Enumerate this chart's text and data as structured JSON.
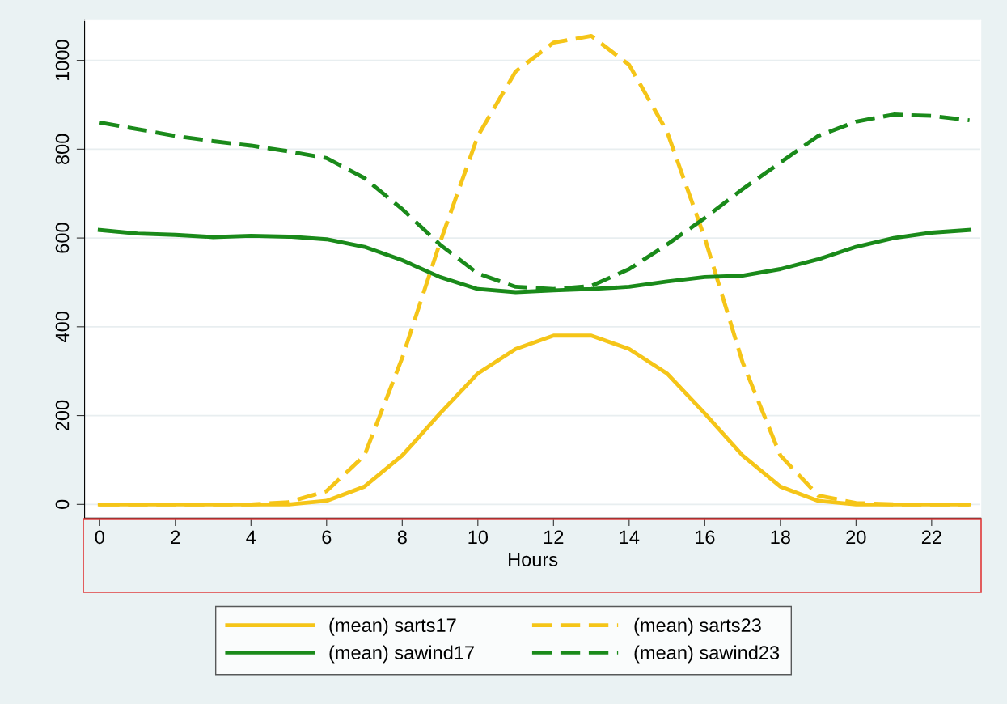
{
  "chart_data": {
    "type": "line",
    "xlabel": "Hours",
    "x": [
      0,
      1,
      2,
      3,
      4,
      5,
      6,
      7,
      8,
      9,
      10,
      11,
      12,
      13,
      14,
      15,
      16,
      17,
      18,
      19,
      20,
      21,
      22,
      23
    ],
    "series": [
      {
        "name": "(mean) sarts17",
        "color": "#f5c518",
        "line_style": "solid",
        "values": [
          0,
          0,
          0,
          0,
          0,
          0,
          8,
          40,
          110,
          205,
          295,
          350,
          380,
          380,
          350,
          295,
          205,
          110,
          40,
          8,
          0,
          0,
          0,
          0
        ]
      },
      {
        "name": "(mean) sarts23",
        "color": "#f5c518",
        "line_style": "dashed",
        "values": [
          0,
          0,
          0,
          0,
          0,
          5,
          30,
          110,
          330,
          590,
          830,
          975,
          1040,
          1055,
          990,
          840,
          600,
          320,
          110,
          20,
          3,
          0,
          0,
          0
        ]
      },
      {
        "name": "(mean) sawind17",
        "color": "#1a8a1a",
        "line_style": "solid",
        "values": [
          618,
          610,
          607,
          602,
          605,
          603,
          597,
          580,
          550,
          512,
          485,
          478,
          482,
          485,
          490,
          502,
          512,
          515,
          530,
          552,
          580,
          600,
          612,
          618
        ]
      },
      {
        "name": "(mean) sawind23",
        "color": "#1a8a1a",
        "line_style": "dashed",
        "values": [
          860,
          845,
          830,
          818,
          808,
          795,
          780,
          735,
          665,
          585,
          520,
          490,
          485,
          492,
          530,
          585,
          645,
          710,
          770,
          830,
          862,
          878,
          875,
          865
        ]
      }
    ],
    "xlim": [
      -0.4,
      23.3
    ],
    "ylim": [
      -31,
      1090
    ],
    "xticks": [
      0,
      2,
      4,
      6,
      8,
      10,
      12,
      14,
      16,
      18,
      20,
      22
    ],
    "yticks": [
      0,
      200,
      400,
      600,
      800,
      1000
    ],
    "grid": "y",
    "legend": "bottom",
    "marker": "none"
  }
}
